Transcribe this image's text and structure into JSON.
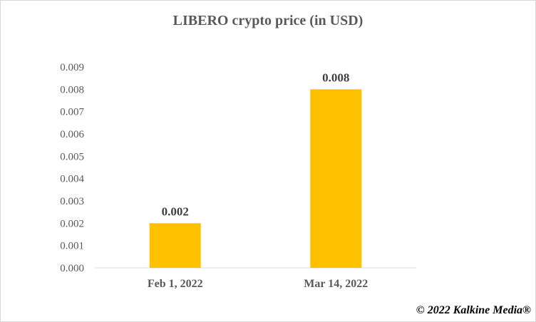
{
  "chart_data": {
    "type": "bar",
    "title": "LIBERO crypto price (in USD)",
    "categories": [
      "Feb 1, 2022",
      "Mar 14, 2022"
    ],
    "values": [
      0.002,
      0.008
    ],
    "data_labels": [
      "0.002",
      "0.008"
    ],
    "yticks": [
      "0.000",
      "0.001",
      "0.002",
      "0.003",
      "0.004",
      "0.005",
      "0.006",
      "0.007",
      "0.008",
      "0.009"
    ],
    "ylim": [
      0,
      0.009
    ],
    "grid": false,
    "legend": "none",
    "bar_color": "#FFC000"
  },
  "copyright": "© 2022 Kalkine Media®"
}
